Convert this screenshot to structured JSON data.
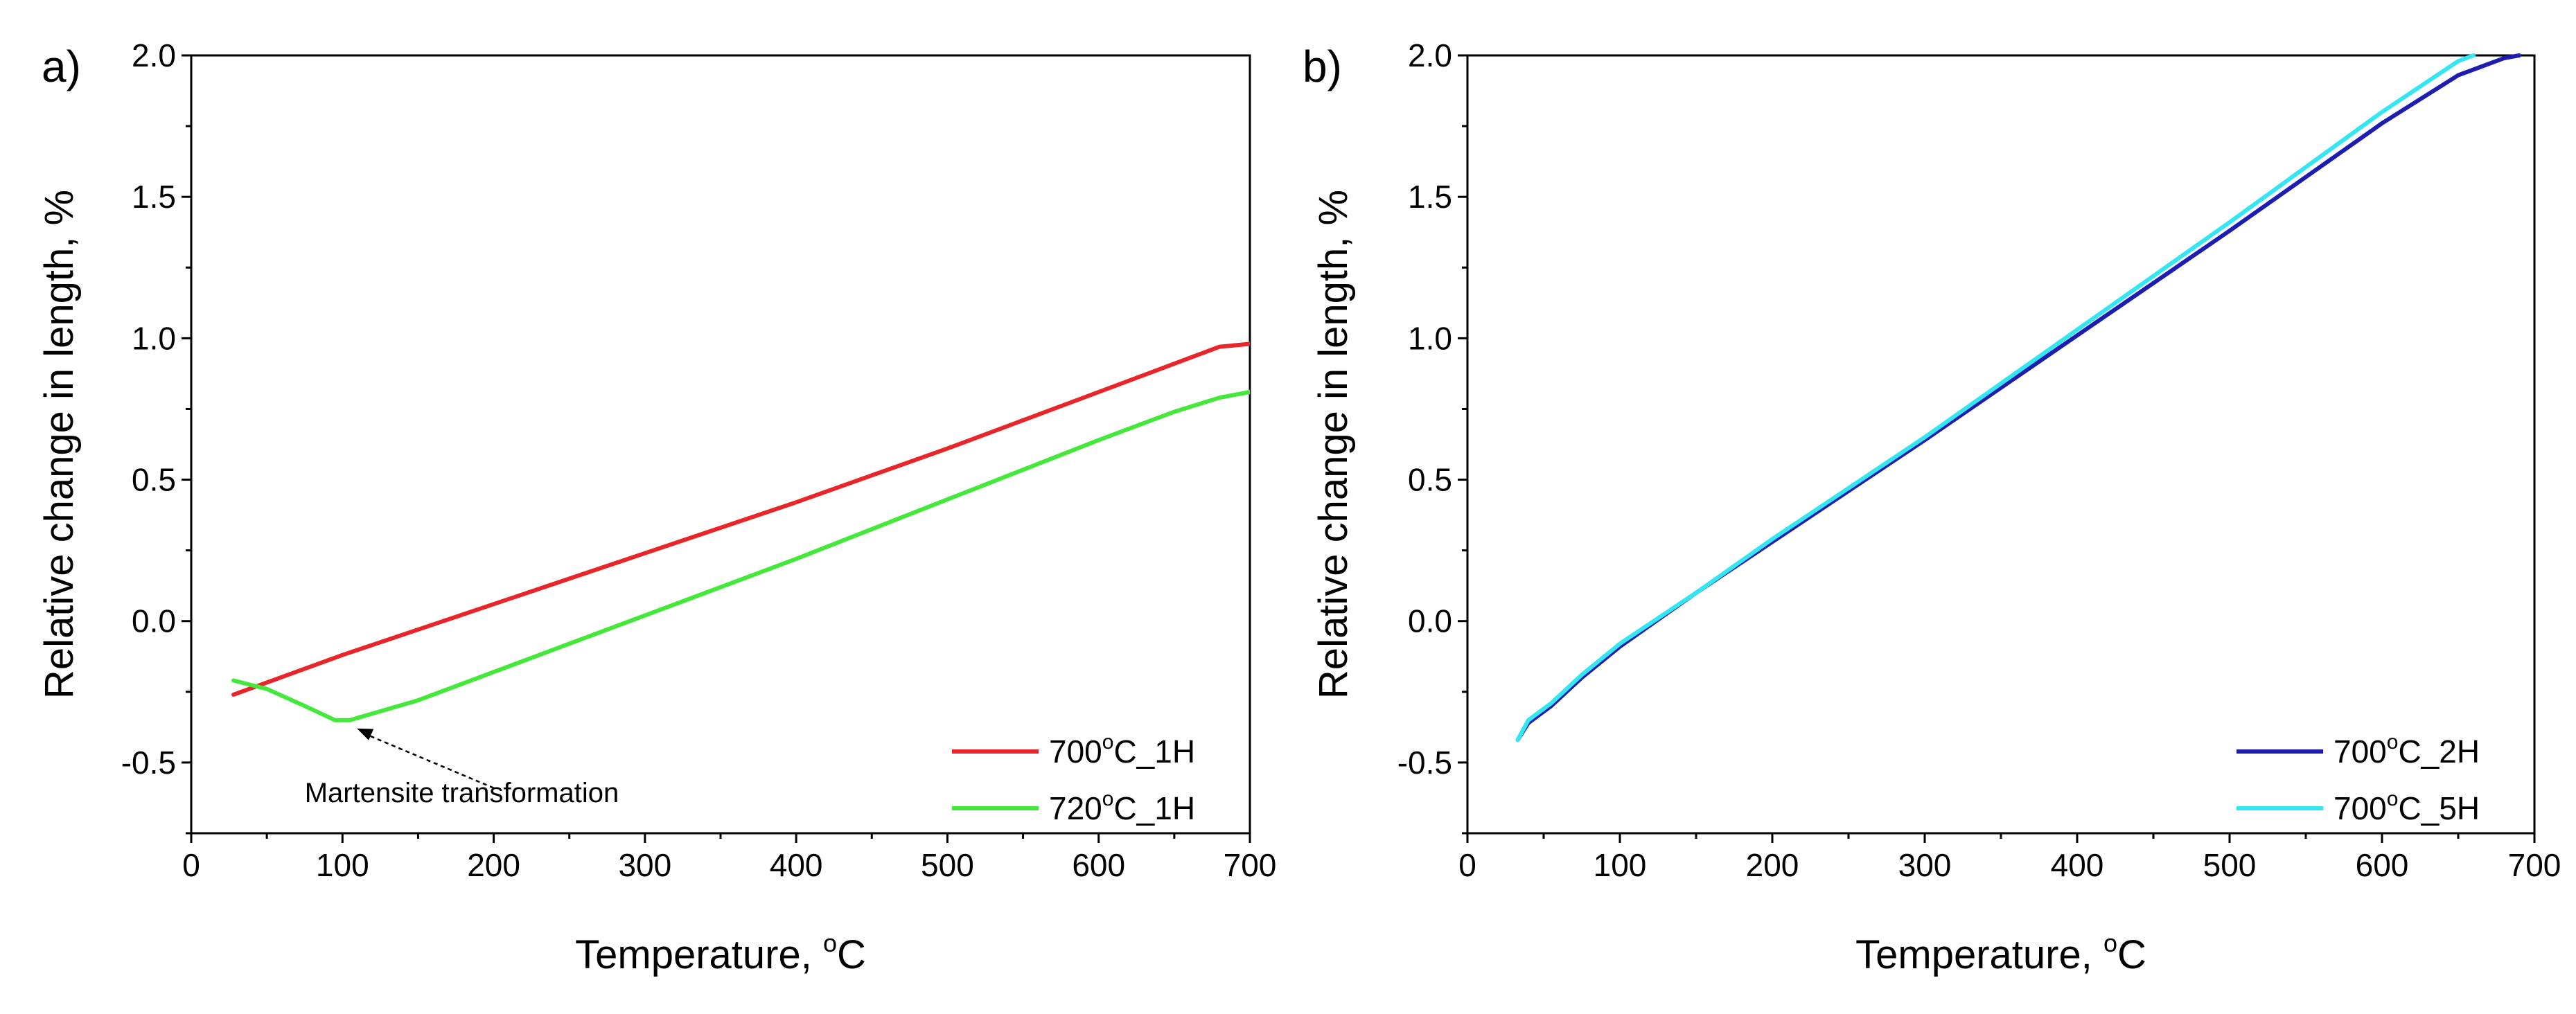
{
  "chart_data": [
    {
      "panel_label": "a)",
      "type": "line",
      "xlabel_prefix": "Temperature, ",
      "xlabel_degree": "o",
      "xlabel_unit": "C",
      "ylabel": "Relative change in length, %",
      "xlim": [
        0,
        700
      ],
      "ylim": [
        -0.75,
        2.0
      ],
      "xticks": [
        0,
        100,
        200,
        300,
        400,
        500,
        600,
        700
      ],
      "yticks": [
        -0.5,
        0.0,
        0.5,
        1.0,
        1.5,
        2.0
      ],
      "xtick_labels": [
        "0",
        "100",
        "200",
        "300",
        "400",
        "500",
        "600",
        "700"
      ],
      "ytick_labels": [
        "-0.5",
        "0.0",
        "0.5",
        "1.0",
        "1.5",
        "2.0"
      ],
      "legend_position": "bottom-right",
      "series": [
        {
          "name_prefix": "700",
          "name_degree": "o",
          "name_suffix": "C_1H",
          "color": "#e8262a",
          "x": [
            28,
            100,
            200,
            300,
            400,
            500,
            600,
            650,
            680,
            700
          ],
          "y": [
            -0.26,
            -0.12,
            0.06,
            0.24,
            0.42,
            0.61,
            0.81,
            0.91,
            0.97,
            0.98
          ]
        },
        {
          "name_prefix": "720",
          "name_degree": "o",
          "name_suffix": "C_1H",
          "color": "#44e83a",
          "x": [
            28,
            50,
            75,
            95,
            105,
            150,
            200,
            300,
            400,
            500,
            600,
            650,
            680,
            700
          ],
          "y": [
            -0.21,
            -0.24,
            -0.3,
            -0.35,
            -0.35,
            -0.28,
            -0.18,
            0.02,
            0.22,
            0.43,
            0.64,
            0.74,
            0.79,
            0.81
          ]
        }
      ],
      "annotation": {
        "text": "Martensite transformation",
        "target_x": 105,
        "target_y": -0.36,
        "text_x": 75,
        "text_y": -0.64
      }
    },
    {
      "panel_label": "b)",
      "type": "line",
      "xlabel_prefix": "Temperature, ",
      "xlabel_degree": "o",
      "xlabel_unit": "C",
      "ylabel": "Relative change in length, %",
      "xlim": [
        0,
        700
      ],
      "ylim": [
        -0.75,
        2.0
      ],
      "xticks": [
        0,
        100,
        200,
        300,
        400,
        500,
        600,
        700
      ],
      "yticks": [
        -0.5,
        0.0,
        0.5,
        1.0,
        1.5,
        2.0
      ],
      "xtick_labels": [
        "0",
        "100",
        "200",
        "300",
        "400",
        "500",
        "600",
        "700"
      ],
      "ytick_labels": [
        "-0.5",
        "0.0",
        "0.5",
        "1.0",
        "1.5",
        "2.0"
      ],
      "legend_position": "bottom-right",
      "series": [
        {
          "name_prefix": "700",
          "name_degree": "o",
          "name_suffix": "C_2H",
          "color": "#1c1cb0",
          "x": [
            33,
            40,
            55,
            75,
            100,
            150,
            200,
            300,
            400,
            500,
            600,
            650,
            680,
            690
          ],
          "y": [
            -0.42,
            -0.36,
            -0.3,
            -0.2,
            -0.09,
            0.1,
            0.28,
            0.64,
            1.01,
            1.38,
            1.76,
            1.93,
            1.99,
            2.0
          ]
        },
        {
          "name_prefix": "700",
          "name_degree": "o",
          "name_suffix": "C_5H",
          "color": "#33e6f2",
          "x": [
            33,
            40,
            55,
            75,
            100,
            150,
            200,
            300,
            400,
            500,
            600,
            650,
            660
          ],
          "y": [
            -0.42,
            -0.35,
            -0.29,
            -0.19,
            -0.08,
            0.1,
            0.29,
            0.65,
            1.03,
            1.41,
            1.8,
            1.98,
            2.0
          ]
        }
      ],
      "annotation": null
    }
  ]
}
